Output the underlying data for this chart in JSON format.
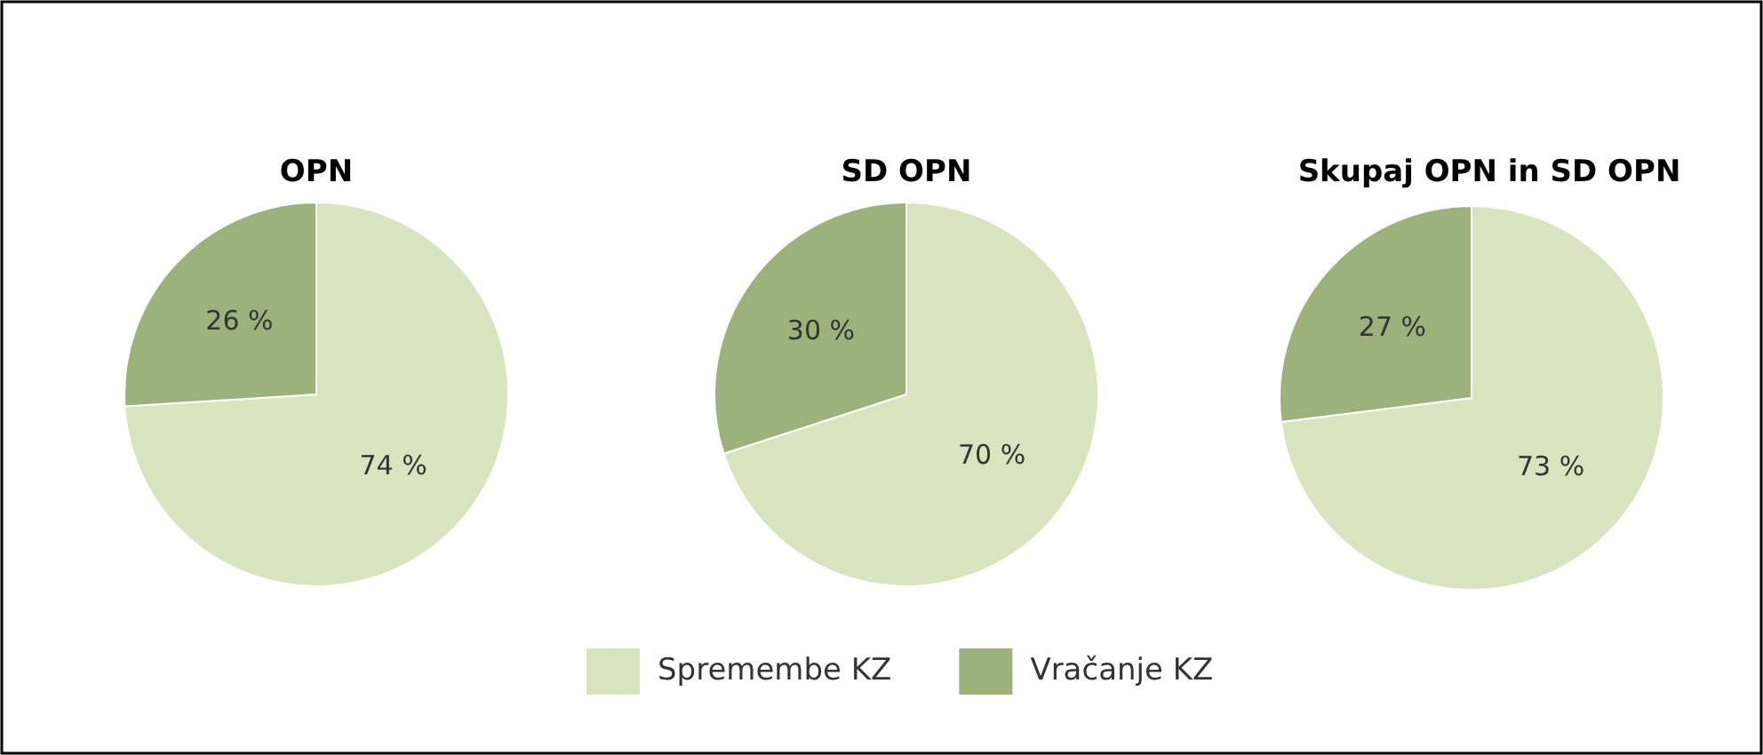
{
  "chart_data": [
    {
      "type": "pie",
      "title": "OPN",
      "categories": [
        null,
        null
      ],
      "values": [
        74,
        26
      ],
      "colors": [
        "#d7e4bd",
        "#9bb37b"
      ],
      "value_labels": [
        "74 %",
        "26 %"
      ]
    },
    {
      "type": "pie",
      "title": "SD OPN",
      "categories": [
        "Spremembe KZ",
        "Vračanje KZ"
      ],
      "values": [
        70,
        30
      ],
      "colors": [
        "#d7e4bd",
        "#9bb37b"
      ],
      "value_labels": [
        "70 %",
        "30 %"
      ],
      "legend": "bottom"
    },
    {
      "type": "pie",
      "title": "Skupaj OPN in SD OPN",
      "categories": [
        null,
        null
      ],
      "values": [
        73,
        27
      ],
      "colors": [
        "#d7e4bd",
        "#9bb37b"
      ],
      "value_labels": [
        "73 %",
        "27 %"
      ]
    }
  ]
}
